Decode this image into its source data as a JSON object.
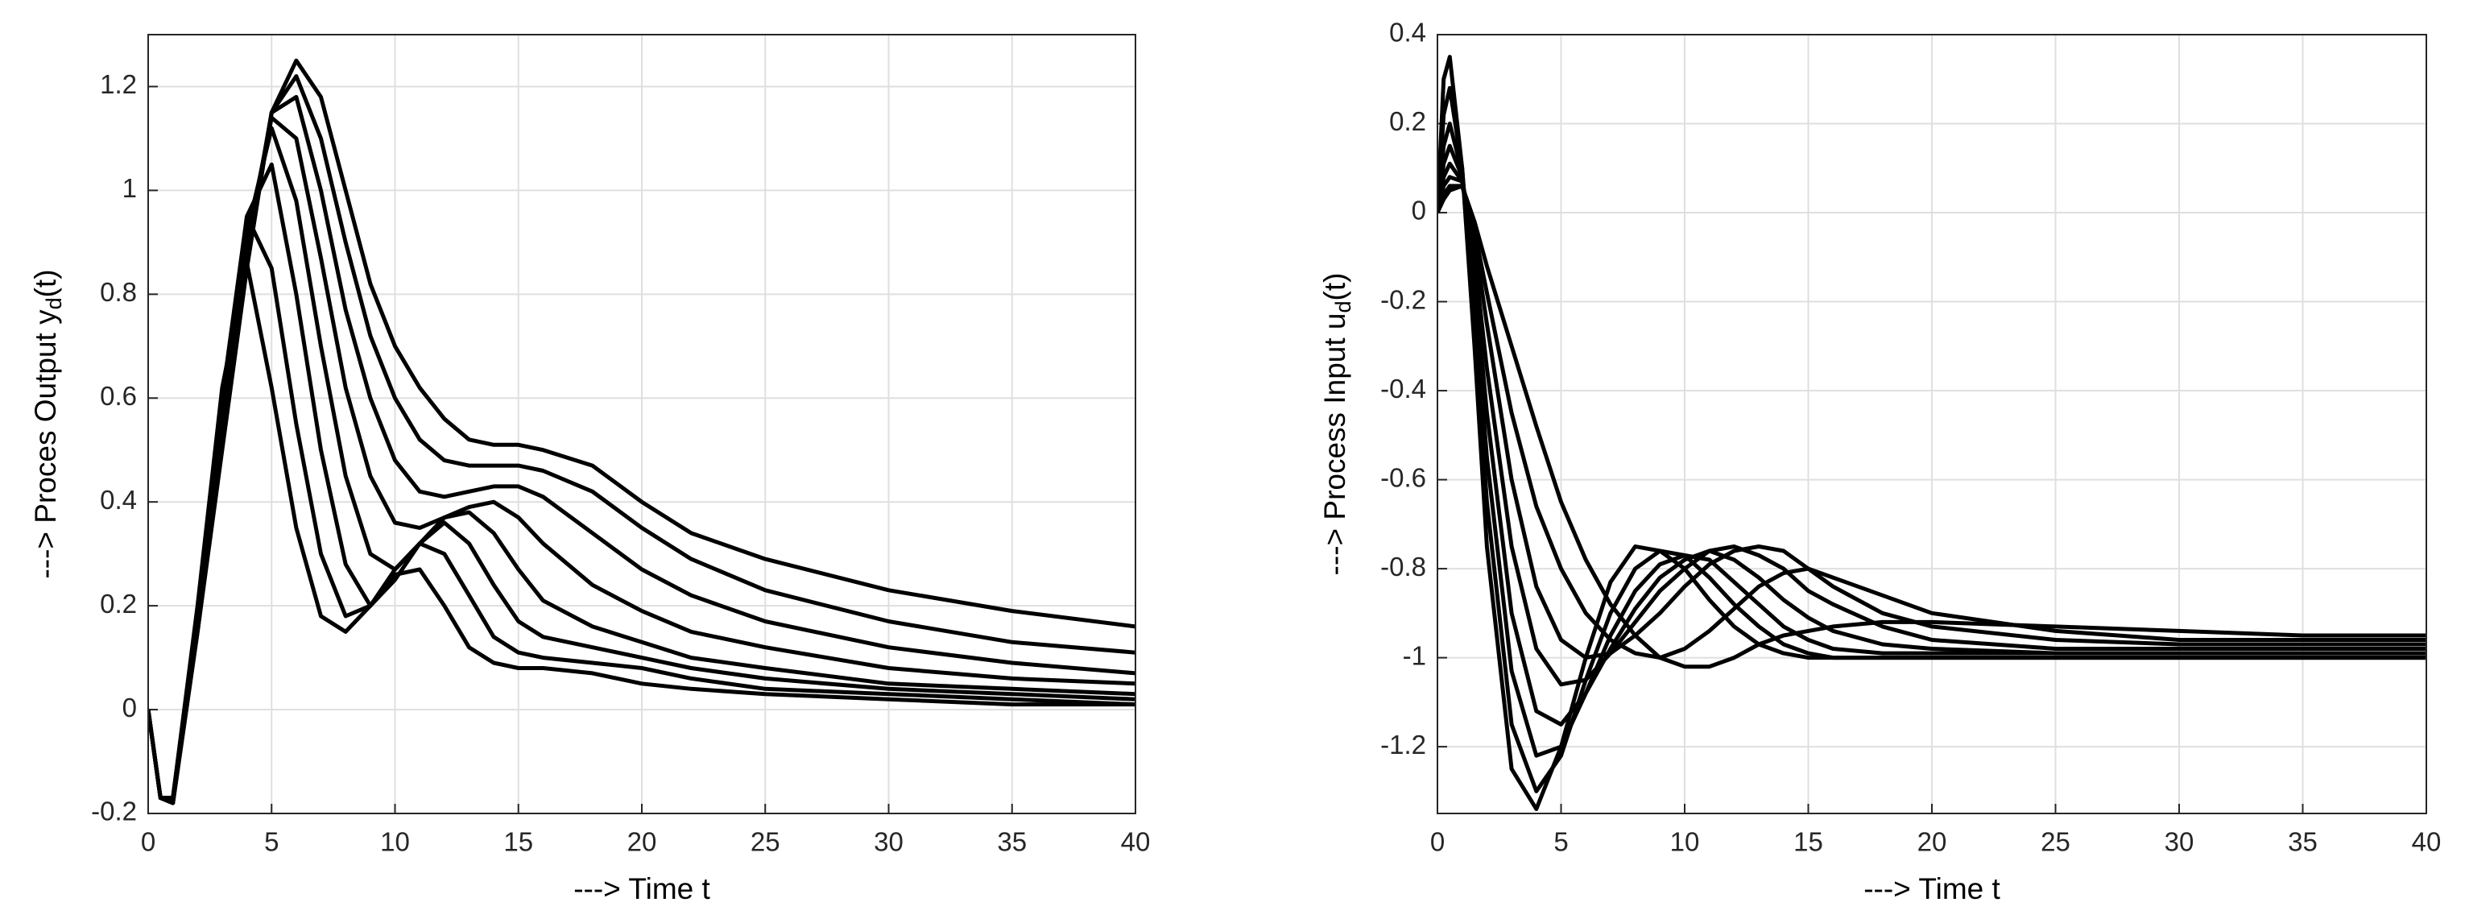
{
  "chart_data": [
    {
      "type": "line",
      "xlabel": "---> Time t",
      "ylabel_parts": [
        "---> Proces Output y",
        "d",
        "(t)"
      ],
      "x": [
        0,
        0.5,
        1,
        2,
        3,
        4,
        5,
        6,
        7,
        8,
        9,
        10,
        11,
        12,
        13,
        14,
        15,
        16,
        18,
        20,
        22,
        25,
        30,
        35,
        40
      ],
      "xlim": [
        0,
        40
      ],
      "xticks": [
        0,
        5,
        10,
        15,
        20,
        25,
        30,
        35,
        40
      ],
      "ylim": [
        -0.2,
        1.3
      ],
      "yticks": [
        -0.2,
        0,
        0.2,
        0.4,
        0.6,
        0.8,
        1,
        1.2
      ],
      "grid": true,
      "series": [
        {
          "color": "#000000",
          "values": [
            0,
            -0.17,
            -0.17,
            0.2,
            0.62,
            0.86,
            0.62,
            0.35,
            0.18,
            0.15,
            0.2,
            0.26,
            0.27,
            0.2,
            0.12,
            0.09,
            0.08,
            0.08,
            0.07,
            0.05,
            0.04,
            0.03,
            0.02,
            0.01,
            0.01
          ]
        },
        {
          "color": "#000000",
          "values": [
            0,
            -0.17,
            -0.17,
            0.19,
            0.6,
            0.95,
            0.85,
            0.55,
            0.3,
            0.18,
            0.2,
            0.27,
            0.32,
            0.3,
            0.22,
            0.14,
            0.11,
            0.1,
            0.09,
            0.08,
            0.06,
            0.04,
            0.03,
            0.02,
            0.01
          ]
        },
        {
          "color": "#000000",
          "values": [
            0,
            -0.17,
            -0.17,
            0.18,
            0.58,
            0.95,
            1.05,
            0.8,
            0.5,
            0.28,
            0.2,
            0.25,
            0.32,
            0.36,
            0.32,
            0.24,
            0.17,
            0.14,
            0.12,
            0.1,
            0.08,
            0.06,
            0.04,
            0.03,
            0.02
          ]
        },
        {
          "color": "#000000",
          "values": [
            0,
            -0.17,
            -0.17,
            0.17,
            0.56,
            0.92,
            1.12,
            0.98,
            0.7,
            0.45,
            0.3,
            0.27,
            0.32,
            0.37,
            0.38,
            0.34,
            0.27,
            0.21,
            0.16,
            0.13,
            0.1,
            0.08,
            0.05,
            0.04,
            0.03
          ]
        },
        {
          "color": "#000000",
          "values": [
            0,
            -0.17,
            -0.17,
            0.16,
            0.54,
            0.9,
            1.14,
            1.1,
            0.87,
            0.62,
            0.45,
            0.36,
            0.35,
            0.37,
            0.39,
            0.4,
            0.37,
            0.32,
            0.24,
            0.19,
            0.15,
            0.12,
            0.08,
            0.06,
            0.05
          ]
        },
        {
          "color": "#000000",
          "values": [
            0,
            -0.17,
            -0.18,
            0.16,
            0.52,
            0.88,
            1.15,
            1.18,
            1.0,
            0.77,
            0.6,
            0.48,
            0.42,
            0.41,
            0.42,
            0.43,
            0.43,
            0.41,
            0.34,
            0.27,
            0.22,
            0.17,
            0.12,
            0.09,
            0.07
          ]
        },
        {
          "color": "#000000",
          "values": [
            0,
            -0.17,
            -0.18,
            0.15,
            0.51,
            0.87,
            1.15,
            1.22,
            1.1,
            0.9,
            0.72,
            0.6,
            0.52,
            0.48,
            0.47,
            0.47,
            0.47,
            0.46,
            0.42,
            0.35,
            0.29,
            0.23,
            0.17,
            0.13,
            0.11
          ]
        },
        {
          "color": "#000000",
          "values": [
            0,
            -0.17,
            -0.18,
            0.15,
            0.5,
            0.85,
            1.15,
            1.25,
            1.18,
            1.0,
            0.82,
            0.7,
            0.62,
            0.56,
            0.52,
            0.51,
            0.51,
            0.5,
            0.47,
            0.4,
            0.34,
            0.29,
            0.23,
            0.19,
            0.16
          ]
        }
      ]
    },
    {
      "type": "line",
      "xlabel": "---> Time t",
      "ylabel_parts": [
        "---> Process Input u",
        "d",
        "(t)"
      ],
      "x": [
        0,
        0.25,
        0.5,
        1,
        1.5,
        2,
        3,
        4,
        5,
        6,
        7,
        8,
        9,
        10,
        11,
        12,
        13,
        14,
        15,
        16,
        18,
        20,
        25,
        30,
        35,
        40
      ],
      "xlim": [
        0,
        40
      ],
      "xticks": [
        0,
        5,
        10,
        15,
        20,
        25,
        30,
        35,
        40
      ],
      "ylim": [
        -1.35,
        0.4
      ],
      "yticks": [
        -1.2,
        -1,
        -0.8,
        -0.6,
        -0.4,
        -0.2,
        0,
        0.2,
        0.4
      ],
      "grid": true,
      "series": [
        {
          "color": "#000000",
          "values": [
            0,
            0.3,
            0.35,
            0.1,
            -0.3,
            -0.75,
            -1.25,
            -1.34,
            -1.2,
            -1.0,
            -0.83,
            -0.75,
            -0.76,
            -0.8,
            -0.87,
            -0.93,
            -0.97,
            -0.99,
            -1.0,
            -1.0,
            -1.0,
            -1.0,
            -1.0,
            -1.0,
            -1.0,
            -1.0
          ]
        },
        {
          "color": "#000000",
          "values": [
            0,
            0.22,
            0.28,
            0.1,
            -0.25,
            -0.65,
            -1.15,
            -1.3,
            -1.22,
            -1.05,
            -0.9,
            -0.8,
            -0.76,
            -0.77,
            -0.82,
            -0.88,
            -0.93,
            -0.97,
            -0.99,
            -1.0,
            -1.0,
            -1.0,
            -1.0,
            -1.0,
            -1.0,
            -1.0
          ]
        },
        {
          "color": "#000000",
          "values": [
            0,
            0.15,
            0.2,
            0.09,
            -0.2,
            -0.55,
            -1.03,
            -1.22,
            -1.2,
            -1.08,
            -0.95,
            -0.85,
            -0.79,
            -0.77,
            -0.78,
            -0.83,
            -0.88,
            -0.93,
            -0.96,
            -0.98,
            -0.99,
            -0.99,
            -0.99,
            -0.99,
            -0.99,
            -0.99
          ]
        },
        {
          "color": "#000000",
          "values": [
            0,
            0.11,
            0.15,
            0.08,
            -0.15,
            -0.45,
            -0.9,
            -1.12,
            -1.15,
            -1.08,
            -0.98,
            -0.89,
            -0.82,
            -0.78,
            -0.76,
            -0.78,
            -0.82,
            -0.87,
            -0.91,
            -0.94,
            -0.97,
            -0.98,
            -0.99,
            -0.99,
            -0.99,
            -0.99
          ]
        },
        {
          "color": "#000000",
          "values": [
            0,
            0.08,
            0.11,
            0.07,
            -0.1,
            -0.35,
            -0.75,
            -0.98,
            -1.06,
            -1.05,
            -0.99,
            -0.92,
            -0.85,
            -0.8,
            -0.76,
            -0.75,
            -0.77,
            -0.8,
            -0.85,
            -0.88,
            -0.93,
            -0.96,
            -0.98,
            -0.98,
            -0.98,
            -0.98
          ]
        },
        {
          "color": "#000000",
          "values": [
            0,
            0.06,
            0.08,
            0.07,
            -0.06,
            -0.25,
            -0.6,
            -0.84,
            -0.96,
            -1.0,
            -0.99,
            -0.95,
            -0.9,
            -0.84,
            -0.79,
            -0.76,
            -0.75,
            -0.76,
            -0.8,
            -0.84,
            -0.9,
            -0.93,
            -0.96,
            -0.97,
            -0.97,
            -0.97
          ]
        },
        {
          "color": "#000000",
          "values": [
            0,
            0.04,
            0.06,
            0.06,
            -0.04,
            -0.18,
            -0.45,
            -0.66,
            -0.8,
            -0.9,
            -0.96,
            -0.99,
            -1.0,
            -0.98,
            -0.94,
            -0.89,
            -0.84,
            -0.81,
            -0.8,
            -0.82,
            -0.86,
            -0.9,
            -0.94,
            -0.96,
            -0.96,
            -0.96
          ]
        },
        {
          "color": "#000000",
          "values": [
            0,
            0.03,
            0.05,
            0.06,
            -0.02,
            -0.12,
            -0.3,
            -0.48,
            -0.65,
            -0.78,
            -0.88,
            -0.95,
            -1.0,
            -1.02,
            -1.02,
            -1.0,
            -0.97,
            -0.95,
            -0.94,
            -0.93,
            -0.92,
            -0.92,
            -0.93,
            -0.94,
            -0.95,
            -0.95
          ]
        }
      ]
    }
  ]
}
